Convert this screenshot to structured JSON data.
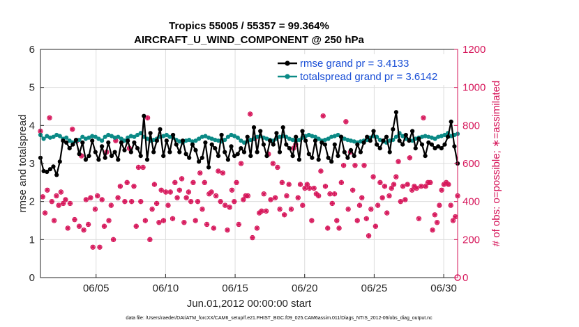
{
  "chart_data": {
    "type": "line",
    "title_line1": "Tropics 55005 / 55357 = 99.364%",
    "title_line2": "AIRCRAFT_U_WIND_COMPONENT @ 250 hPa",
    "xlabel": "Jun.01,2012 00:00:00 start",
    "ylabel_left": "rmse and totalspread",
    "ylabel_right": "# of obs: o=possible; ∗=assimilated",
    "x_range_days": [
      1.0,
      31.0
    ],
    "ylim_left": [
      0,
      6
    ],
    "ylim_right": [
      0,
      1200
    ],
    "yticks_left": [
      "0",
      "1",
      "2",
      "3",
      "4",
      "5",
      "6"
    ],
    "yticks_right": [
      "0",
      "200",
      "400",
      "600",
      "800",
      "1000",
      "1200"
    ],
    "xticks": [
      {
        "day": 5,
        "label": "06/05"
      },
      {
        "day": 10,
        "label": "06/10"
      },
      {
        "day": 15,
        "label": "06/15"
      },
      {
        "day": 20,
        "label": "06/20"
      },
      {
        "day": 25,
        "label": "06/25"
      },
      {
        "day": 30,
        "label": "06/30"
      }
    ],
    "series": [
      {
        "name": "rmse",
        "legend": "rmse grand pr = 3.4133",
        "color": "#000000",
        "values": [
          3.15,
          2.8,
          2.78,
          2.85,
          2.92,
          2.7,
          3.05,
          3.6,
          3.55,
          3.4,
          3.5,
          3.62,
          3.25,
          3.55,
          3.1,
          3.2,
          3.6,
          3.3,
          3.1,
          3.45,
          3.15,
          3.55,
          3.2,
          3.3,
          3.1,
          3.55,
          3.35,
          3.6,
          3.3,
          3.55,
          3.4,
          3.2,
          4.25,
          3.1,
          3.8,
          3.3,
          3.6,
          3.9,
          3.2,
          3.6,
          3.3,
          3.75,
          3.5,
          3.3,
          3.6,
          3.25,
          3.15,
          3.5,
          3.35,
          3.05,
          3.15,
          3.55,
          2.9,
          3.5,
          3.4,
          3.2,
          3.75,
          3.3,
          3.1,
          3.45,
          3.2,
          3.25,
          3.4,
          3.3,
          3.7,
          3.2,
          3.95,
          3.3,
          3.85,
          3.5,
          3.2,
          3.6,
          3.5,
          3.8,
          3.3,
          3.95,
          3.5,
          3.4,
          3.2,
          3.7,
          3.1,
          3.85,
          3.6,
          3.25,
          3.15,
          3.6,
          3.1,
          3.55,
          3.5,
          3.15,
          3.05,
          3.5,
          3.2,
          3.7,
          3.3,
          3.15,
          3.35,
          3.2,
          3.5,
          3.3,
          3.55,
          3.7,
          3.6,
          3.85,
          3.5,
          3.4,
          3.6,
          3.7,
          3.3,
          3.9,
          4.35,
          3.6,
          3.5,
          3.75,
          3.6,
          3.85,
          3.4,
          3.65,
          3.5,
          3.2,
          3.55,
          3.5,
          3.4,
          3.45,
          3.4,
          3.5,
          3.7,
          4.1,
          3.45,
          3.0
        ],
        "grand": 3.4133
      },
      {
        "name": "totalspread",
        "legend": "totalspread grand pr = 3.6142",
        "color": "#0b8a86",
        "values": [
          3.75,
          3.65,
          3.72,
          3.68,
          3.7,
          3.75,
          3.72,
          3.65,
          3.68,
          3.6,
          3.55,
          3.58,
          3.62,
          3.7,
          3.65,
          3.68,
          3.72,
          3.7,
          3.65,
          3.6,
          3.7,
          3.75,
          3.72,
          3.68,
          3.7,
          3.65,
          3.6,
          3.68,
          3.72,
          3.7,
          3.75,
          3.8,
          3.7,
          3.65,
          3.6,
          3.62,
          3.65,
          3.7,
          3.72,
          3.75,
          3.7,
          3.68,
          3.62,
          3.58,
          3.55,
          3.6,
          3.62,
          3.58,
          3.6,
          3.65,
          3.7,
          3.72,
          3.68,
          3.65,
          3.62,
          3.6,
          3.58,
          3.62,
          3.7,
          3.75,
          3.72,
          3.68,
          3.6,
          3.55,
          3.58,
          3.62,
          3.65,
          3.7,
          3.72,
          3.68,
          3.65,
          3.62,
          3.6,
          3.65,
          3.7,
          3.72,
          3.7,
          3.65,
          3.62,
          3.6,
          3.62,
          3.68,
          3.72,
          3.75,
          3.72,
          3.7,
          3.65,
          3.6,
          3.62,
          3.65,
          3.7,
          3.72,
          3.75,
          3.7,
          3.65,
          3.62,
          3.6,
          3.58,
          3.55,
          3.58,
          3.6,
          3.62,
          3.68,
          3.72,
          3.7,
          3.62,
          3.58,
          3.55,
          3.6,
          3.62,
          3.7,
          3.8,
          3.72,
          3.65,
          3.62,
          3.6,
          3.65,
          3.68,
          3.7,
          3.72,
          3.7,
          3.68,
          3.65,
          3.7,
          3.72,
          3.75,
          3.8,
          3.72,
          3.75,
          3.78
        ],
        "grand": 3.6142
      }
    ],
    "obs_counts": {
      "name": "# of obs",
      "color": "#d6165a",
      "values": [
        770,
        425,
        340,
        460,
        840,
        400,
        300,
        430,
        380,
        450,
        390,
        410,
        260,
        390,
        780,
        305,
        720,
        270,
        640,
        250,
        410,
        280,
        420,
        160,
        360,
        430,
        160,
        410,
        270,
        660,
        300,
        380,
        200,
        720,
        420,
        480,
        720,
        400,
        500,
        680,
        400,
        480,
        270,
        580,
        400,
        580,
        300,
        840,
        200,
        360,
        490,
        390,
        290,
        460,
        300,
        450,
        380,
        450,
        310,
        500,
        420,
        460,
        520,
        290,
        420,
        450,
        400,
        500,
        300,
        400,
        550,
        360,
        500,
        280,
        440,
        450,
        260,
        430,
        560,
        400,
        550,
        380,
        250,
        370,
        460,
        400,
        500,
        280,
        600,
        410,
        430,
        430,
        860,
        210,
        730,
        260,
        340,
        350,
        440,
        350,
        650,
        410,
        600,
        420,
        580,
        360,
        500,
        330,
        430,
        490,
        360,
        680,
        700,
        420,
        490,
        380,
        470,
        490,
        470,
        300,
        470,
        440,
        430,
        560,
        850,
        480,
        260,
        440,
        390,
        440,
        300,
        260,
        500,
        590,
        820,
        360,
        660,
        460,
        590,
        300,
        380,
        420,
        590,
        310,
        220,
        360,
        530,
        270,
        380,
        500,
        420,
        480,
        340,
        430,
        470,
        490,
        530,
        610,
        400,
        480,
        410,
        490,
        630,
        460,
        480,
        470,
        310,
        480,
        840,
        480,
        500,
        500,
        250,
        330,
        290,
        380,
        460,
        490,
        500,
        490,
        380,
        300,
        320,
        430
      ]
    },
    "footer": "data file: /Users/raeder/DAI/ATM_forcXX/CAM6_setup/f.e21.FHIST_BGC.f09_025.CAM6assim.011/Diags_NTrS_2012-06/obs_diag_output.nc"
  }
}
